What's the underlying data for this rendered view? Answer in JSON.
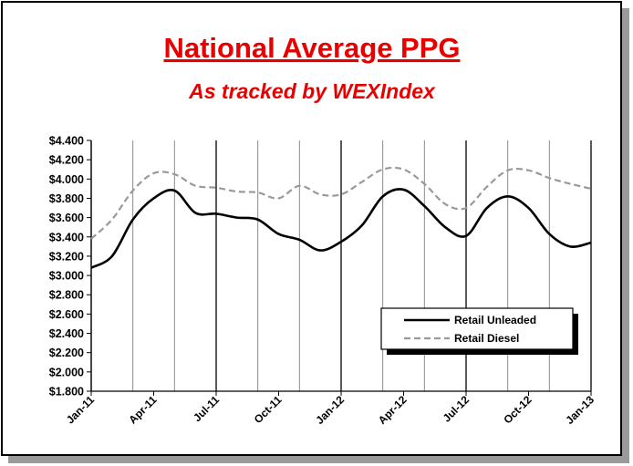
{
  "chart_data": {
    "type": "line",
    "title": "National Average PPG",
    "subtitle": "As tracked by WEXIndex",
    "xlabel": "",
    "ylabel": "",
    "ylim": [
      1.8,
      4.4
    ],
    "ytick_step": 0.2,
    "yticks": [
      "$1.800",
      "$2.000",
      "$2.200",
      "$2.400",
      "$2.600",
      "$2.800",
      "$3.000",
      "$3.200",
      "$3.400",
      "$3.600",
      "$3.800",
      "$4.000",
      "$4.200",
      "$4.400"
    ],
    "x_months": [
      "2011-01",
      "2011-02",
      "2011-03",
      "2011-04",
      "2011-05",
      "2011-06",
      "2011-07",
      "2011-08",
      "2011-09",
      "2011-10",
      "2011-11",
      "2011-12",
      "2012-01",
      "2012-02",
      "2012-03",
      "2012-04",
      "2012-05",
      "2012-06",
      "2012-07",
      "2012-08",
      "2012-09",
      "2012-10",
      "2012-11",
      "2012-12",
      "2013-01"
    ],
    "xticks": [
      "Jan-11",
      "Apr-11",
      "Jul-11",
      "Oct-11",
      "Jan-12",
      "Apr-12",
      "Jul-12",
      "Oct-12",
      "Jan-13"
    ],
    "grid": "vertical",
    "legend_position": "inside-right",
    "series": [
      {
        "name": "Retail Unleaded",
        "style": "solid",
        "color": "#000000",
        "values": [
          3.08,
          3.2,
          3.58,
          3.8,
          3.88,
          3.65,
          3.64,
          3.6,
          3.58,
          3.43,
          3.37,
          3.26,
          3.35,
          3.52,
          3.82,
          3.89,
          3.72,
          3.5,
          3.41,
          3.7,
          3.82,
          3.7,
          3.43,
          3.3,
          3.34
        ]
      },
      {
        "name": "Retail Diesel",
        "style": "dashed",
        "color": "#999999",
        "values": [
          3.38,
          3.58,
          3.88,
          4.06,
          4.05,
          3.93,
          3.91,
          3.87,
          3.86,
          3.8,
          3.93,
          3.84,
          3.84,
          3.97,
          4.1,
          4.1,
          3.95,
          3.74,
          3.7,
          3.92,
          4.09,
          4.09,
          4.01,
          3.95,
          3.9
        ]
      }
    ]
  }
}
